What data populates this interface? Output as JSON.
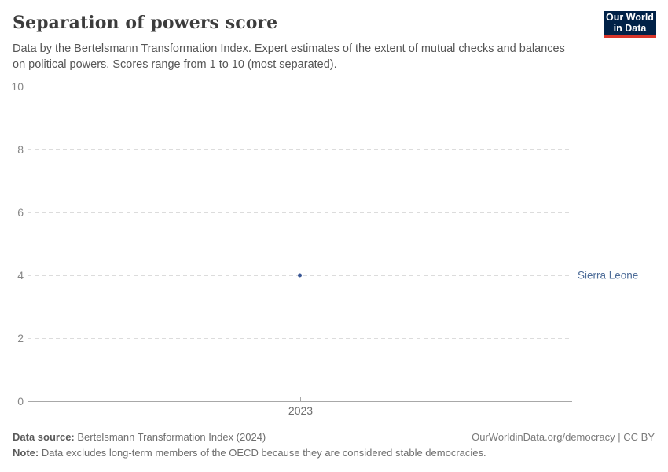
{
  "header": {
    "title": "Separation of powers score",
    "subtitle": "Data by the Bertelsmann Transformation Index. Expert estimates of the extent of mutual checks and balances on political powers. Scores range from 1 to 10 (most separated).",
    "logo": {
      "line1": "Our World",
      "line2": "in Data",
      "bg_color": "#002147",
      "accent_color": "#d8352a"
    }
  },
  "chart_data": {
    "type": "scatter",
    "title": "Separation of powers score",
    "x_ticks": [
      2023
    ],
    "y_ticks": [
      0,
      2,
      4,
      6,
      8,
      10
    ],
    "ylim": [
      0,
      10
    ],
    "grid": "horizontal-dashed",
    "legend_position": "right-entity-label",
    "series": [
      {
        "name": "Sierra Leone",
        "color": "#3a5795",
        "label_color": "#4d6c98",
        "points": [
          {
            "x": 2023,
            "y": 4
          }
        ]
      }
    ]
  },
  "footer": {
    "source_label": "Data source:",
    "source_value": " Bertelsmann Transformation Index (2024)",
    "note_label": "Note:",
    "note_value": " Data excludes long-term members of the OECD because they are considered stable democracies.",
    "credit": "OurWorldinData.org/democracy | CC BY"
  },
  "colors": {
    "title": "#3c3c3c",
    "subtitle": "#565656",
    "axis_label": "#878787",
    "x_label": "#6e6e6e",
    "gridline": "#dcdcdc",
    "axis_line": "#a8a8a8"
  }
}
